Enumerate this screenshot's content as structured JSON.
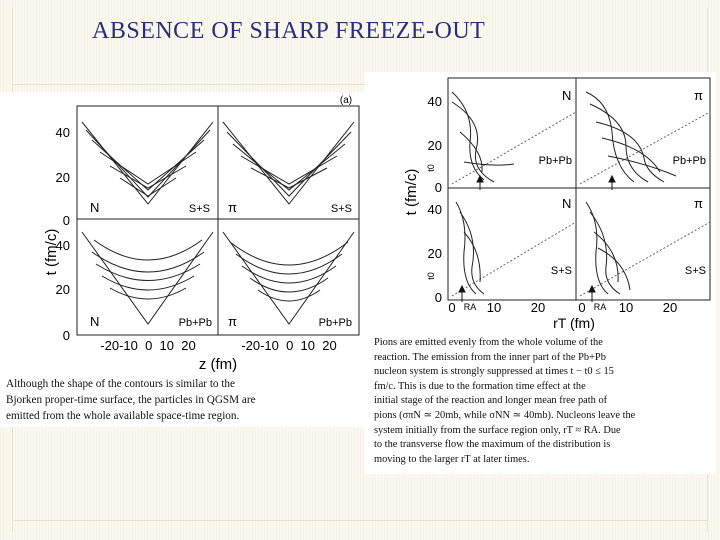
{
  "slide": {
    "title": "ABSENCE OF SHARP FREEZE-OUT"
  },
  "left_figure": {
    "panel_letter": "(a)",
    "y_axis_label": "t (fm/c)",
    "x_axis_label": "z (fm)",
    "y_ticks_top": [
      "40",
      "20",
      "0"
    ],
    "y_ticks_bottom": [
      "40",
      "20",
      "0"
    ],
    "x_ticks_left": "-20-10  0  10  20",
    "x_ticks_right": "-20-10  0  10  20",
    "panels": [
      {
        "particle": "N",
        "system": "S+S"
      },
      {
        "particle": "π",
        "system": "S+S"
      },
      {
        "particle": "N",
        "system": "Pb+Pb"
      },
      {
        "particle": "π",
        "system": "Pb+Pb"
      }
    ]
  },
  "right_figure": {
    "y_axis_label": "t (fm/c)",
    "x_axis_label": "rT (fm)",
    "y_ticks_top": [
      "40",
      "20",
      "0"
    ],
    "y_ticks_bottom": [
      "40",
      "20",
      "0"
    ],
    "x_ticks": [
      "0",
      "10",
      "20",
      "0",
      "10",
      "20"
    ],
    "t0_label": "t0",
    "ra_label": "RA",
    "panels": [
      {
        "particle": "N",
        "system": "Pb+Pb"
      },
      {
        "particle": "π",
        "system": "Pb+Pb"
      },
      {
        "particle": "N",
        "system": "S+S"
      },
      {
        "particle": "π",
        "system": "S+S"
      }
    ]
  },
  "left_caption": {
    "lines": [
      "Although the shape of the contours is similar to the",
      "Bjorken proper-time surface, the particles in QGSM are",
      "emitted from the whole available space-time region."
    ]
  },
  "right_caption": {
    "lines": [
      "Pions are emitted evenly from the whole volume of the",
      "reaction. The emission from the inner part of the Pb+Pb",
      "nucleon system is strongly suppressed at times t − t0 ≤ 15",
      "fm/c. This is due to the formation time effect at the",
      "initial stage of the reaction and longer mean free path of",
      "pions (σπN ≃ 20mb, while σNN ≃ 40mb). Nucleons leave the",
      "system initially from the surface region only, rT ≈ RA. Due",
      "to the transverse flow the maximum of the distribution is",
      "moving to the larger rT at later times."
    ]
  }
}
